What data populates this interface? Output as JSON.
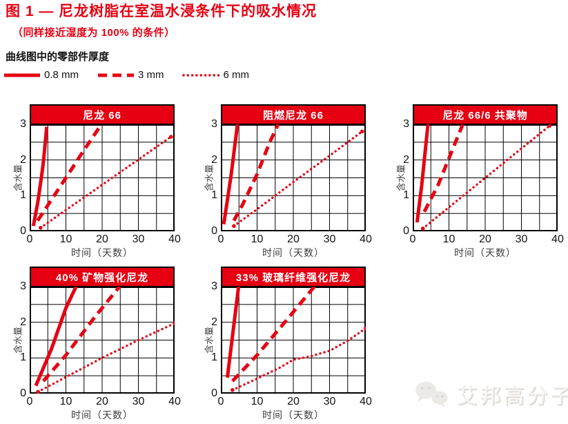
{
  "colors": {
    "accent": "#e60012",
    "grid": "#000000",
    "header_text": "#ffffff"
  },
  "header": {
    "title": "图 1 — 尼龙树脂在室温水浸条件下的吸水情况",
    "subtitle": "（同样接近湿度为 100% 的条件）"
  },
  "legend": {
    "title": "曲线图中的零部件厚度",
    "items": [
      {
        "label": "0.8 mm",
        "style": "solid"
      },
      {
        "label": "3 mm",
        "style": "dashed"
      },
      {
        "label": "6 mm",
        "style": "dotted"
      }
    ]
  },
  "watermark": {
    "text": "艾邦高分子",
    "icon": "wechat-bubbles-icon"
  },
  "chart_data": [
    {
      "type": "line",
      "title": "尼龙 66",
      "xlabel": "时间（天数）",
      "ylabel": "含水量",
      "xlim": [
        0,
        40
      ],
      "ylim": [
        0,
        3
      ],
      "xticks": [
        0,
        10,
        20,
        30,
        40
      ],
      "yticks": [
        0,
        1,
        2,
        3
      ],
      "x_grid_step": 5,
      "y_grid_step": 0.5,
      "grid": true,
      "series": [
        {
          "name": "0.8 mm",
          "style": "solid",
          "points": [
            [
              1.0,
              0.15
            ],
            [
              2.2,
              0.8
            ],
            [
              3.3,
              1.55
            ],
            [
              3.8,
              1.95
            ],
            [
              4.7,
              2.93
            ]
          ]
        },
        {
          "name": "3 mm",
          "style": "dashed",
          "points": [
            [
              2.2,
              0.3
            ],
            [
              10,
              1.5
            ],
            [
              14.5,
              2.2
            ],
            [
              19.8,
              3.0
            ]
          ]
        },
        {
          "name": "6 mm",
          "style": "dotted",
          "end_dots": true,
          "points": [
            [
              3.0,
              0.1
            ],
            [
              39,
              2.65
            ]
          ]
        }
      ]
    },
    {
      "type": "line",
      "title": "阻燃尼龙 66",
      "xlabel": "时间（天数）",
      "ylabel": "含水量",
      "xlim": [
        0,
        40
      ],
      "ylim": [
        0,
        3
      ],
      "xticks": [
        0,
        10,
        20,
        30,
        40
      ],
      "yticks": [
        0,
        1,
        2,
        3
      ],
      "x_grid_step": 5,
      "y_grid_step": 0.5,
      "grid": true,
      "series": [
        {
          "name": "0.8 mm",
          "style": "solid",
          "points": [
            [
              0.8,
              0.2
            ],
            [
              2.8,
              1.55
            ],
            [
              4.6,
              3.0
            ]
          ]
        },
        {
          "name": "3 mm",
          "style": "dashed",
          "points": [
            [
              3.6,
              0.3
            ],
            [
              6,
              0.75
            ],
            [
              10,
              1.6
            ],
            [
              13.5,
              2.5
            ],
            [
              15.8,
              3.0
            ]
          ]
        },
        {
          "name": "6 mm",
          "style": "dotted",
          "end_dots": true,
          "points": [
            [
              3.6,
              0.15
            ],
            [
              10,
              0.62
            ],
            [
              20,
              1.38
            ],
            [
              30,
              2.12
            ],
            [
              39,
              2.8
            ]
          ]
        }
      ]
    },
    {
      "type": "line",
      "title": "尼龙 66/6 共聚物",
      "xlabel": "时间（天数）",
      "ylabel": "含水量",
      "xlim": [
        0,
        40
      ],
      "ylim": [
        0,
        3
      ],
      "xticks": [
        0,
        10,
        20,
        30,
        40
      ],
      "yticks": [
        0,
        1,
        2,
        3
      ],
      "x_grid_step": 5,
      "y_grid_step": 0.5,
      "grid": true,
      "series": [
        {
          "name": "0.8 mm",
          "style": "solid",
          "points": [
            [
              1.2,
              0.25
            ],
            [
              2.5,
              1.3
            ],
            [
              4.2,
              3.0
            ]
          ]
        },
        {
          "name": "3 mm",
          "style": "dashed",
          "points": [
            [
              3.2,
              0.55
            ],
            [
              7,
              1.3
            ],
            [
              11,
              2.3
            ],
            [
              13.8,
              3.0
            ]
          ]
        },
        {
          "name": "6 mm",
          "style": "dotted",
          "end_dots": true,
          "points": [
            [
              2.8,
              0.08
            ],
            [
              20,
              1.5
            ],
            [
              37.8,
              2.96
            ]
          ]
        }
      ]
    },
    {
      "type": "line",
      "title": "40% 矿物强化尼龙",
      "xlabel": "时间（天数）",
      "ylabel": "含水量",
      "xlim": [
        0,
        40
      ],
      "ylim": [
        0,
        3
      ],
      "xticks": [
        0,
        10,
        20,
        30,
        40
      ],
      "yticks": [
        0,
        1,
        2,
        3
      ],
      "x_grid_step": 5,
      "y_grid_step": 0.5,
      "grid": true,
      "series": [
        {
          "name": "0.8 mm",
          "style": "solid",
          "points": [
            [
              1.7,
              0.22
            ],
            [
              6,
              1.25
            ],
            [
              10,
              2.4
            ],
            [
              12.8,
              3.0
            ]
          ]
        },
        {
          "name": "3 mm",
          "style": "dashed",
          "points": [
            [
              3.8,
              0.35
            ],
            [
              10,
              1.08
            ],
            [
              18,
              2.15
            ],
            [
              24.8,
              3.0
            ]
          ]
        },
        {
          "name": "6 mm",
          "style": "dotted",
          "end_dots": true,
          "points": [
            [
              2.3,
              0.05
            ],
            [
              20,
              1.0
            ],
            [
              30,
              1.5
            ],
            [
              40,
              1.97
            ]
          ]
        }
      ]
    },
    {
      "type": "line",
      "title": "33% 玻璃纤维强化尼龙",
      "xlabel": "时间（天数）",
      "ylabel": "含水量",
      "xlim": [
        0,
        40
      ],
      "ylim": [
        0,
        3
      ],
      "xticks": [
        0,
        10,
        20,
        30,
        40
      ],
      "yticks": [
        0,
        1,
        2,
        3
      ],
      "x_grid_step": 5,
      "y_grid_step": 0.5,
      "grid": true,
      "series": [
        {
          "name": "0.8 mm",
          "style": "solid",
          "points": [
            [
              1.8,
              0.45
            ],
            [
              3.2,
              1.6
            ],
            [
              4.9,
              3.0
            ]
          ]
        },
        {
          "name": "3 mm",
          "style": "dashed",
          "points": [
            [
              3.2,
              0.35
            ],
            [
              10,
              1.08
            ],
            [
              16,
              1.8
            ],
            [
              20.5,
              2.35
            ],
            [
              25.8,
              3.0
            ]
          ]
        },
        {
          "name": "6 mm",
          "style": "dotted",
          "end_dots": true,
          "points": [
            [
              3.2,
              0.1
            ],
            [
              10,
              0.42
            ],
            [
              16.5,
              0.74
            ],
            [
              20,
              0.95
            ],
            [
              24.5,
              1.04
            ],
            [
              30,
              1.2
            ],
            [
              35,
              1.48
            ],
            [
              40,
              1.83
            ]
          ]
        }
      ]
    }
  ]
}
